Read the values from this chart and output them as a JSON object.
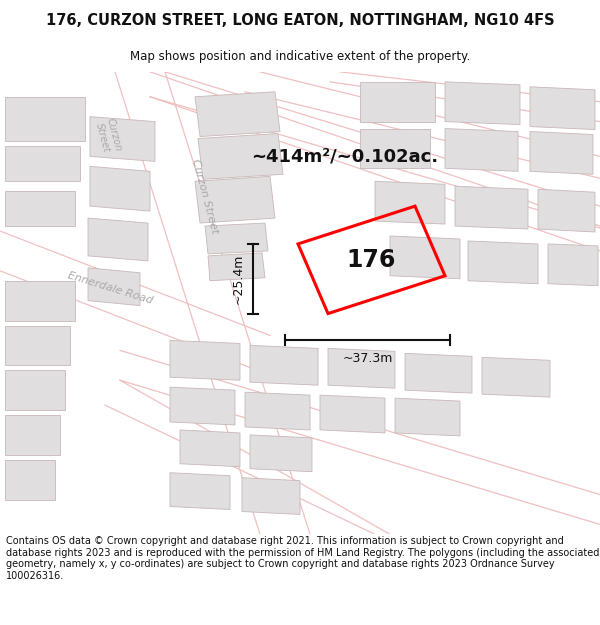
{
  "title_line1": "176, CURZON STREET, LONG EATON, NOTTINGHAM, NG10 4FS",
  "title_line2": "Map shows position and indicative extent of the property.",
  "area_label": "~414m²/~0.102ac.",
  "number_label": "176",
  "width_label": "~37.3m",
  "height_label": "~25.4m",
  "footer_text": "Contains OS data © Crown copyright and database right 2021. This information is subject to Crown copyright and database rights 2023 and is reproduced with the permission of HM Land Registry. The polygons (including the associated geometry, namely x, y co-ordinates) are subject to Crown copyright and database rights 2023 Ordnance Survey 100026316.",
  "bg_color": "#ffffff",
  "map_bg": "#f7f5f5",
  "road_color": "#ffffff",
  "building_color": "#e0dede",
  "building_outline": "#c8b8b8",
  "pink_road_color": "#f0c0c0",
  "highlight_color": "#ff0000",
  "dim_line_color": "#111111",
  "text_color": "#111111",
  "road_label_color": "#aaaaaa"
}
